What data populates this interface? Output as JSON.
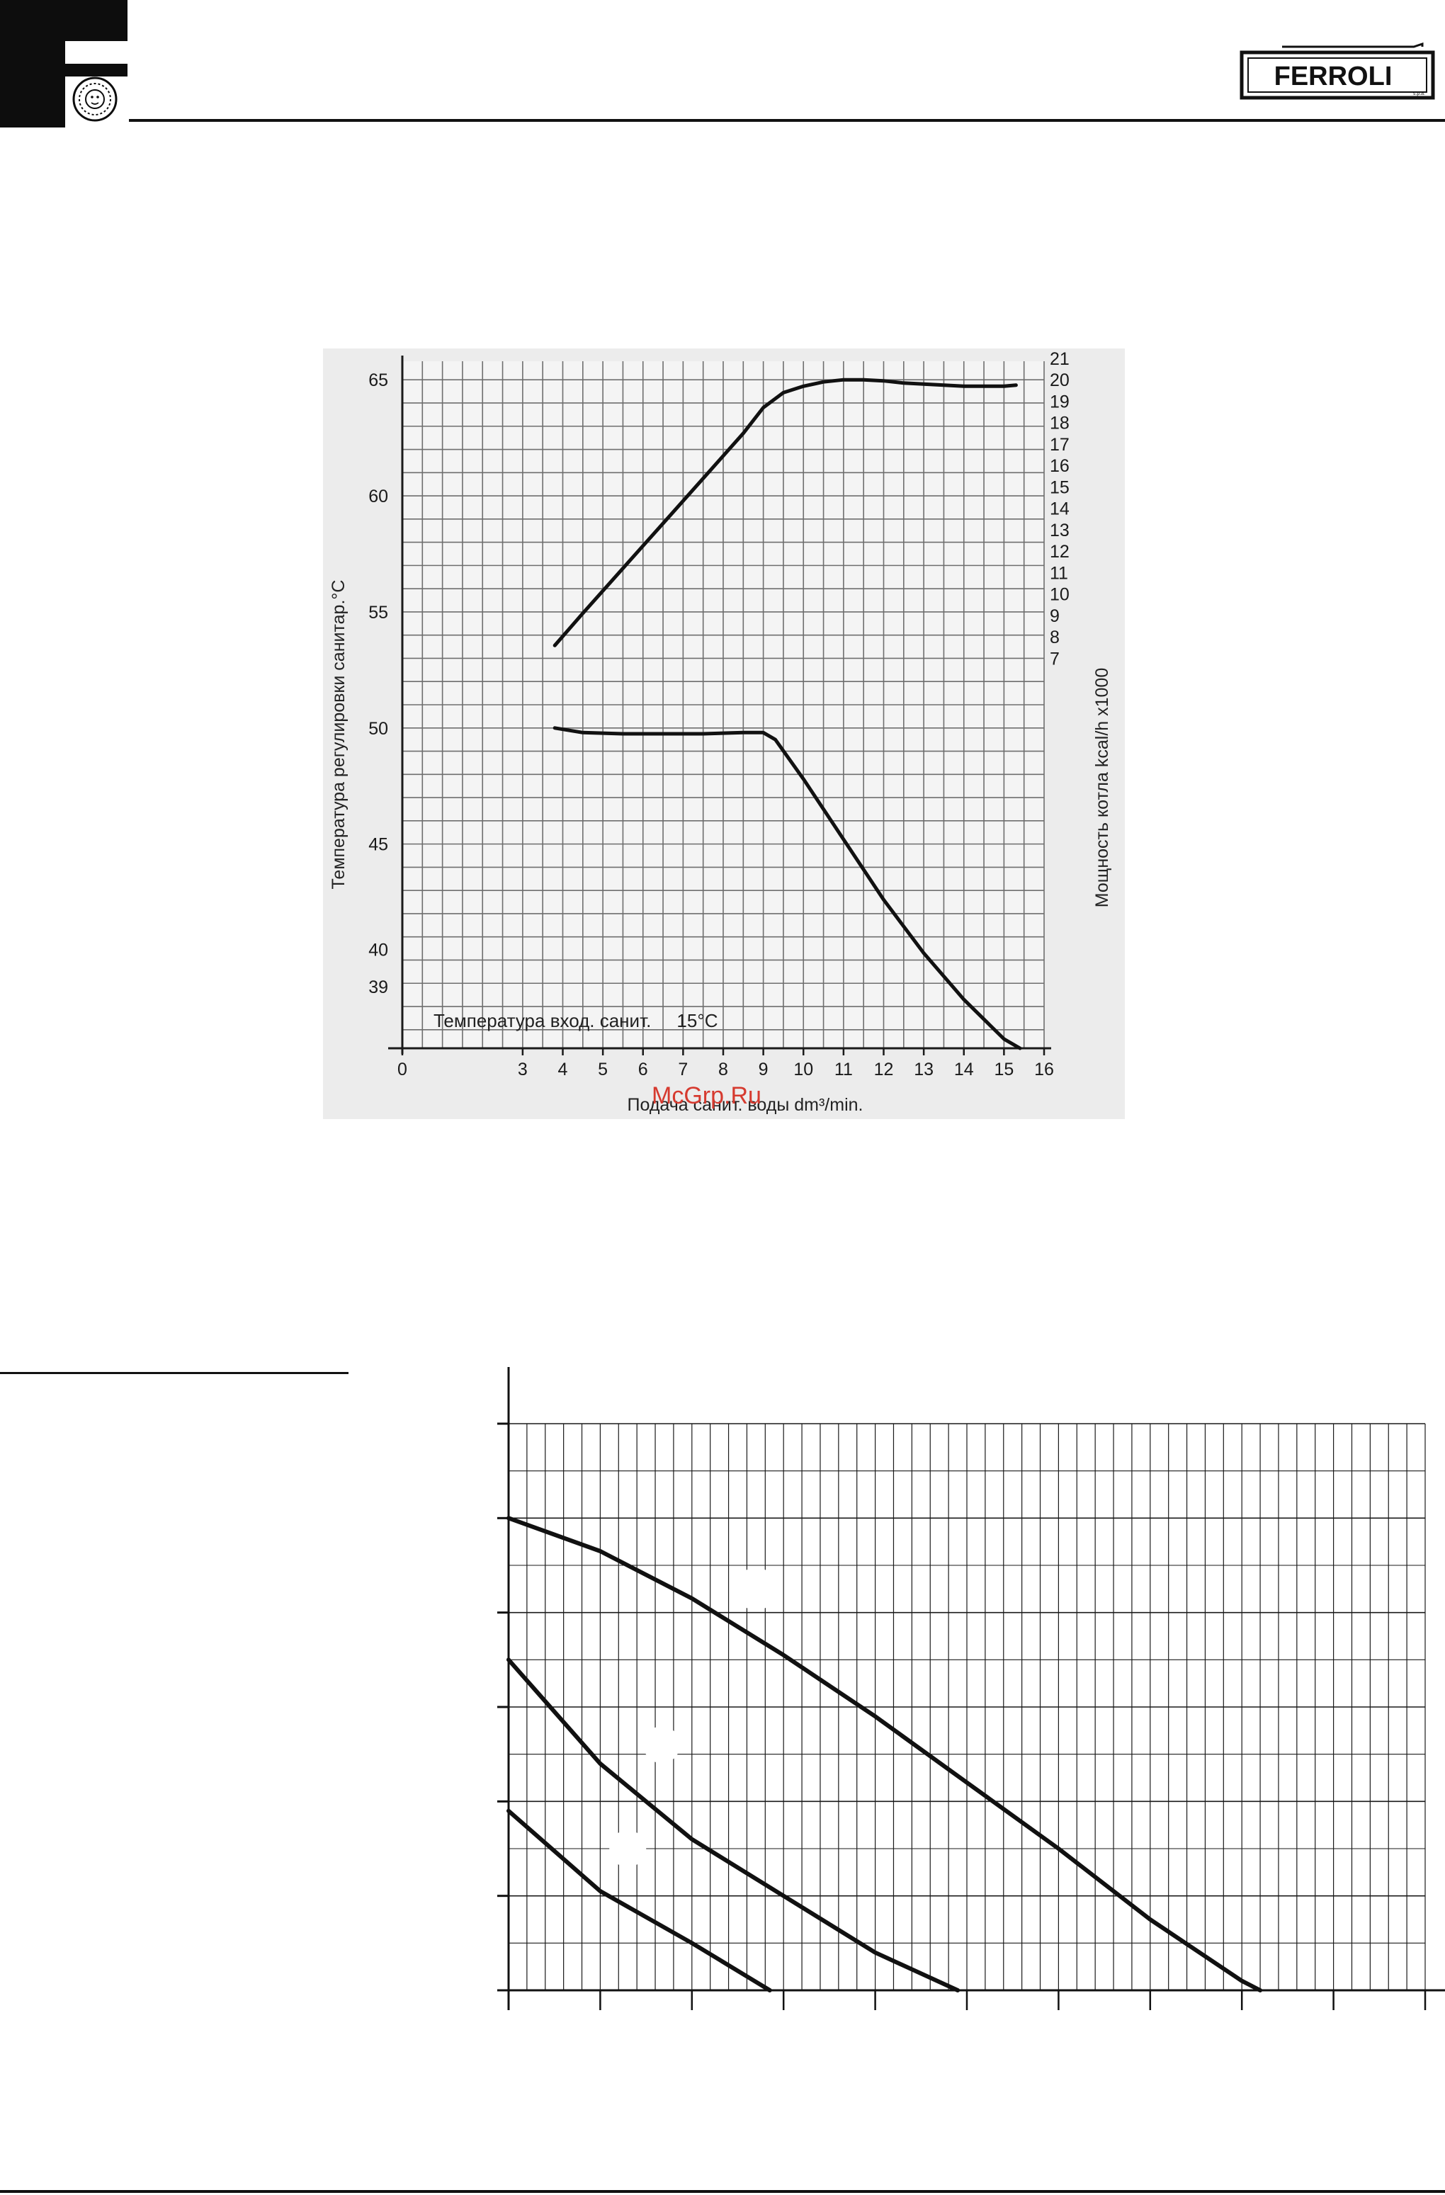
{
  "header": {
    "brand_name": "FERROLI",
    "brand_suffix": "s.p.a."
  },
  "watermark": "McGrp.Ru",
  "chart_data": [
    {
      "type": "line",
      "title": "",
      "xlabel": "Подача санит. воды dm³/min.",
      "ylabel": "Температура регулировки санитар.°C",
      "y2label": "Мощность котла  kcal/h x1000",
      "annotation": "Температура вход. санит.     15°C",
      "x_ticks": [
        "0",
        "3",
        "4",
        "5",
        "6",
        "7",
        "8",
        "9",
        "10",
        "11",
        "12",
        "13",
        "14",
        "15",
        "16"
      ],
      "y_ticks": [
        "39",
        "40",
        "45",
        "50",
        "55",
        "60",
        "65"
      ],
      "y2_ticks": [
        "7",
        "8",
        "9",
        "10",
        "11",
        "12",
        "13",
        "14",
        "15",
        "16",
        "17",
        "18",
        "19",
        "20",
        "21"
      ],
      "xlim": [
        0,
        16
      ],
      "ylim": [
        36.2,
        65.8
      ],
      "y2lim": [
        7,
        21
      ],
      "grid": true,
      "series": [
        {
          "axis": "right",
          "x": [
            3.8,
            4.5,
            5.5,
            6.5,
            7.5,
            8.5,
            9.0,
            9.5,
            10.0,
            10.5,
            11.0,
            11.5,
            12.0,
            12.5,
            13.0,
            13.5,
            14.0,
            14.5,
            15.0,
            15.3
          ],
          "values": [
            7.6,
            9.1,
            11.2,
            13.3,
            15.4,
            17.5,
            18.7,
            19.4,
            19.7,
            19.9,
            20.0,
            20.0,
            19.95,
            19.85,
            19.8,
            19.75,
            19.7,
            19.7,
            19.7,
            19.75
          ]
        },
        {
          "axis": "left",
          "x": [
            3.8,
            4.5,
            5.5,
            6.5,
            7.5,
            8.5,
            9.0,
            9.3,
            10.0,
            11.0,
            12.0,
            13.0,
            14.0,
            15.0,
            15.4
          ],
          "values": [
            50.0,
            49.8,
            49.75,
            49.75,
            49.75,
            49.8,
            49.8,
            49.5,
            47.8,
            45.2,
            42.6,
            40.3,
            38.3,
            36.6,
            36.2
          ]
        }
      ]
    },
    {
      "type": "line",
      "title": "",
      "xlabel": "",
      "ylabel": "",
      "xlim": [
        0,
        10
      ],
      "ylim": [
        0,
        6
      ],
      "grid": true,
      "curve_labels": [
        "",
        "",
        ""
      ],
      "series": [
        {
          "x": [
            0,
            1,
            2,
            3,
            4,
            5,
            6,
            7,
            8,
            8.2
          ],
          "values": [
            5.0,
            4.65,
            4.15,
            3.55,
            2.9,
            2.2,
            1.5,
            0.75,
            0.1,
            0
          ]
        },
        {
          "x": [
            0,
            1,
            2,
            3,
            4,
            4.9
          ],
          "values": [
            3.5,
            2.4,
            1.6,
            1.0,
            0.4,
            0
          ]
        },
        {
          "x": [
            0,
            1,
            2,
            2.85
          ],
          "values": [
            1.9,
            1.05,
            0.5,
            0
          ]
        }
      ]
    }
  ]
}
